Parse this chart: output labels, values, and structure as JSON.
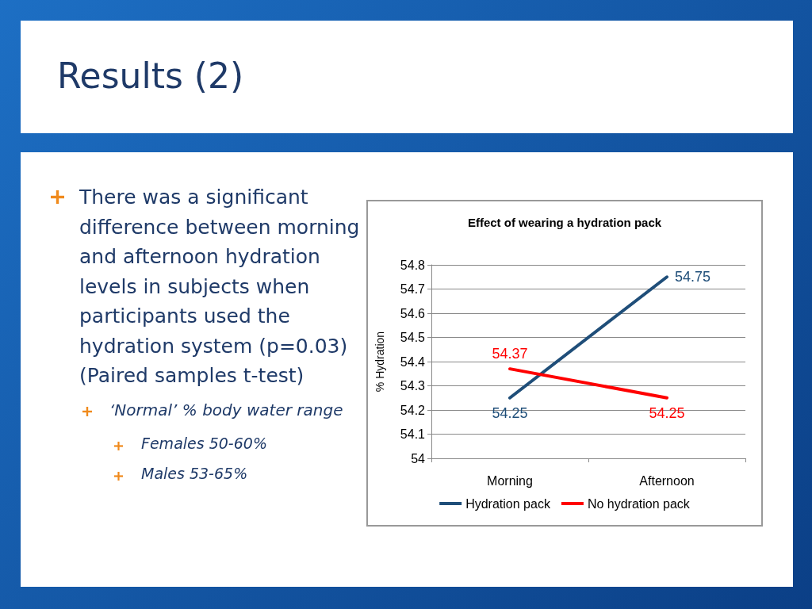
{
  "chart_data": {
    "type": "line",
    "title": "Effect of wearing a hydration pack",
    "ylabel": "% Hydration",
    "categories": [
      "Morning",
      "Afternoon"
    ],
    "series": [
      {
        "name": "Hydration pack",
        "color": "#1f4e79",
        "values": [
          54.25,
          54.75
        ]
      },
      {
        "name": "No hydration pack",
        "color": "#ff0000",
        "values": [
          54.37,
          54.25
        ]
      }
    ],
    "ylim": [
      54,
      54.8
    ],
    "yticks": [
      54,
      54.1,
      54.2,
      54.3,
      54.4,
      54.5,
      54.6,
      54.7,
      54.8
    ],
    "grid": "y",
    "legend": "bottom",
    "marker": "none",
    "data_labels": true,
    "annotations": [
      "Results (2)",
      "There was a significant difference between morning and afternoon hydration levels in subjects when participants used the hydration system (p=0.03) (Paired samples t-test)",
      "‘Normal’ % body water range",
      "Females 50-60%",
      "Males 53-65%"
    ]
  }
}
